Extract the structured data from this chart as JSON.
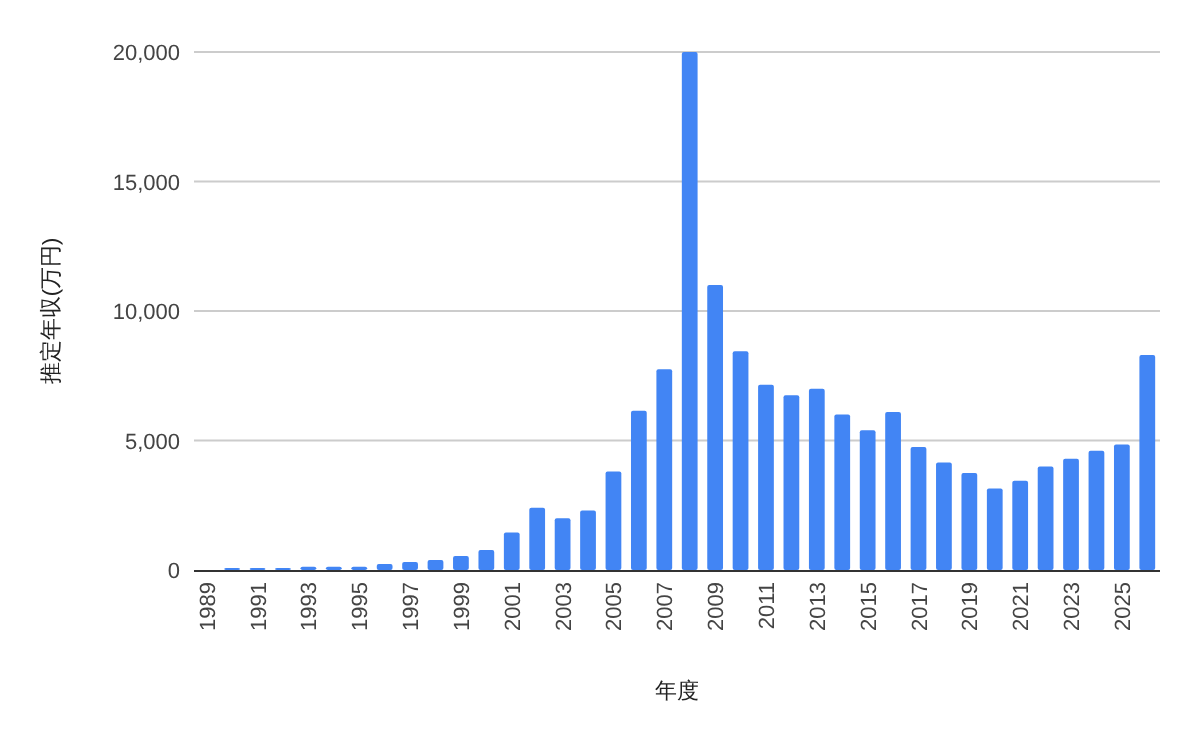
{
  "chart_data": {
    "type": "bar",
    "xlabel": "年度",
    "ylabel": "推定年収(万円)",
    "categories": [
      "1989",
      null,
      "1991",
      null,
      "1993",
      null,
      "1995",
      null,
      "1997",
      null,
      "1999",
      null,
      "2001",
      null,
      "2003",
      null,
      "2005",
      null,
      "2007",
      null,
      "2009",
      null,
      "2011",
      null,
      "2013",
      null,
      "2015",
      null,
      "2017",
      null,
      "2019",
      null,
      "2021",
      null,
      "2023",
      null,
      "2025",
      null
    ],
    "series": [
      {
        "color": "#4285f4",
        "values": [
          0,
          80,
          80,
          80,
          130,
          130,
          130,
          230,
          310,
          390,
          540,
          770,
          1450,
          2400,
          2000,
          2300,
          3800,
          6150,
          7750,
          20000,
          11000,
          8450,
          7150,
          6750,
          7000,
          6000,
          5400,
          6100,
          4750,
          4150,
          3750,
          3150,
          3450,
          4000,
          4300,
          4600,
          4850,
          8300
        ]
      }
    ],
    "ylim": [
      0,
      20000
    ],
    "yticks": [
      0,
      {
        "value": 5000,
        "label": "5,000"
      },
      {
        "value": 10000,
        "label": "10,000"
      },
      {
        "value": 15000,
        "label": "15,000"
      },
      {
        "value": 20000,
        "label": "20,000"
      }
    ],
    "grid": "y"
  }
}
